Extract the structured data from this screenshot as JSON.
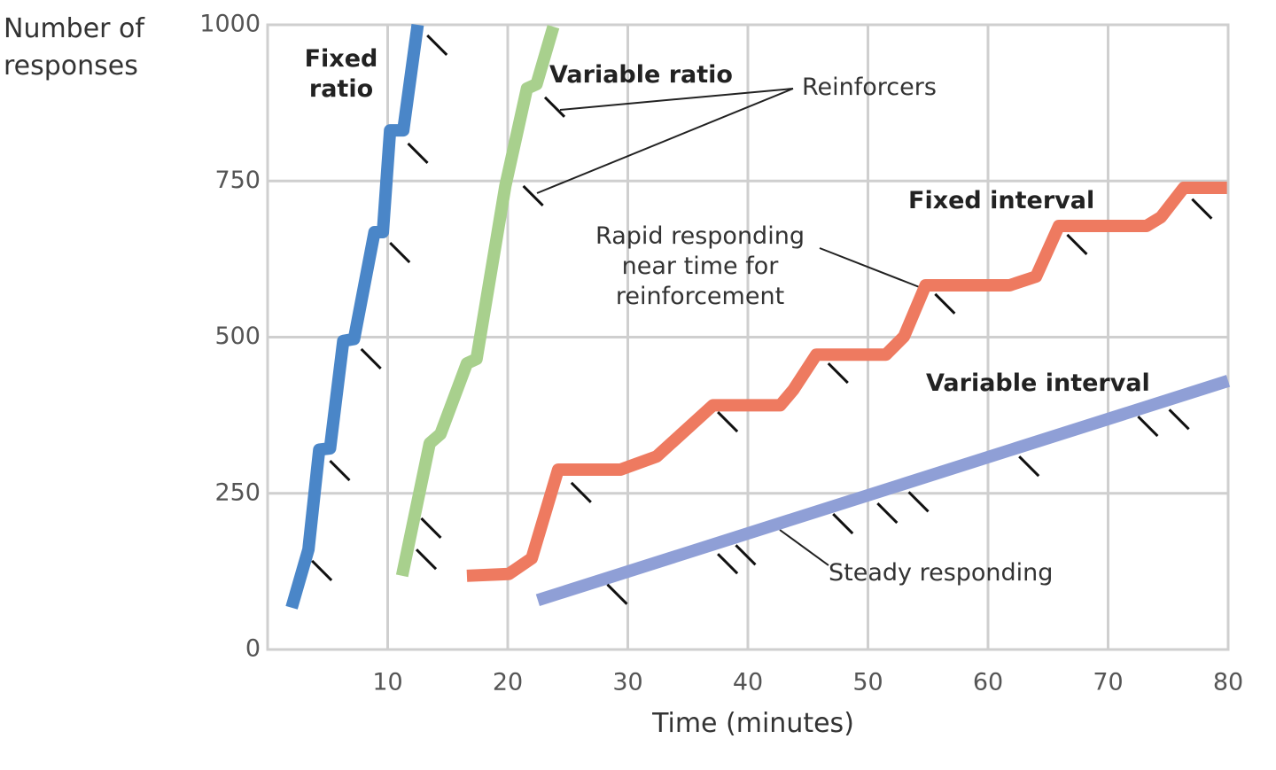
{
  "chart_data": {
    "type": "line",
    "ylabel": "Number of responses",
    "xlabel": "Time (minutes)",
    "xlim": [
      0,
      80
    ],
    "ylim": [
      0,
      1000
    ],
    "xticks": [
      10,
      20,
      30,
      40,
      50,
      60,
      70,
      80
    ],
    "yticks": [
      0,
      250,
      500,
      750,
      1000
    ],
    "grid": true,
    "series": [
      {
        "name": "Fixed ratio",
        "color": "#4a86c8",
        "x": [
          2,
          3.4,
          4.3,
          5.2,
          6.3,
          7.2,
          8.9,
          9.6,
          10.2,
          11.3,
          12.5
        ],
        "values": [
          67,
          160,
          320,
          322,
          494,
          497,
          668,
          668,
          831,
          831,
          1000
        ],
        "reinforcers_x": [
          3.7,
          5.2,
          7.8,
          10.2,
          11.7,
          13.3
        ],
        "reinforcers_y": [
          142,
          302,
          481,
          651,
          810,
          983
        ]
      },
      {
        "name": "Variable ratio",
        "color": "#a8d08d",
        "x": [
          11.2,
          13.5,
          14.4,
          16.6,
          17.4,
          19.8,
          21.6,
          22.4,
          23.8
        ],
        "values": [
          118,
          330,
          345,
          458,
          465,
          742,
          898,
          905,
          997
        ],
        "reinforcers_x": [
          12.4,
          12.8,
          21.3,
          23.1
        ],
        "reinforcers_y": [
          160,
          210,
          742,
          884
        ]
      },
      {
        "name": "Fixed interval",
        "color": "#ee7a60",
        "x": [
          16.6,
          20.1,
          22,
          24.2,
          29.4,
          32.4,
          37.1,
          42.7,
          43.8,
          45.7,
          51.5,
          53,
          54.8,
          61.8,
          64,
          65.9,
          73.2,
          74.4,
          76.3,
          79.9
        ],
        "values": [
          118,
          121,
          146,
          288,
          288,
          309,
          391,
          391,
          416,
          472,
          472,
          501,
          583,
          583,
          597,
          678,
          678,
          692,
          739,
          739
        ],
        "reinforcers_x": [
          25.3,
          37.5,
          46.7,
          55.6,
          66.6,
          77
        ],
        "reinforcers_y": [
          267,
          380,
          458,
          569,
          664,
          721
        ]
      },
      {
        "name": "Variable interval",
        "color": "#8f9fd6",
        "x": [
          22.5,
          80
        ],
        "values": [
          79,
          430
        ],
        "reinforcers_x": [
          28.3,
          37.5,
          39,
          47.1,
          50.8,
          53.4,
          62.6,
          72.5,
          75.1
        ],
        "reinforcers_y": [
          104,
          153,
          167,
          217,
          234,
          252,
          309,
          373,
          384
        ]
      }
    ],
    "annotations": [
      "Reinforcers",
      "Rapid responding near time for reinforcement",
      "Steady responding"
    ]
  }
}
